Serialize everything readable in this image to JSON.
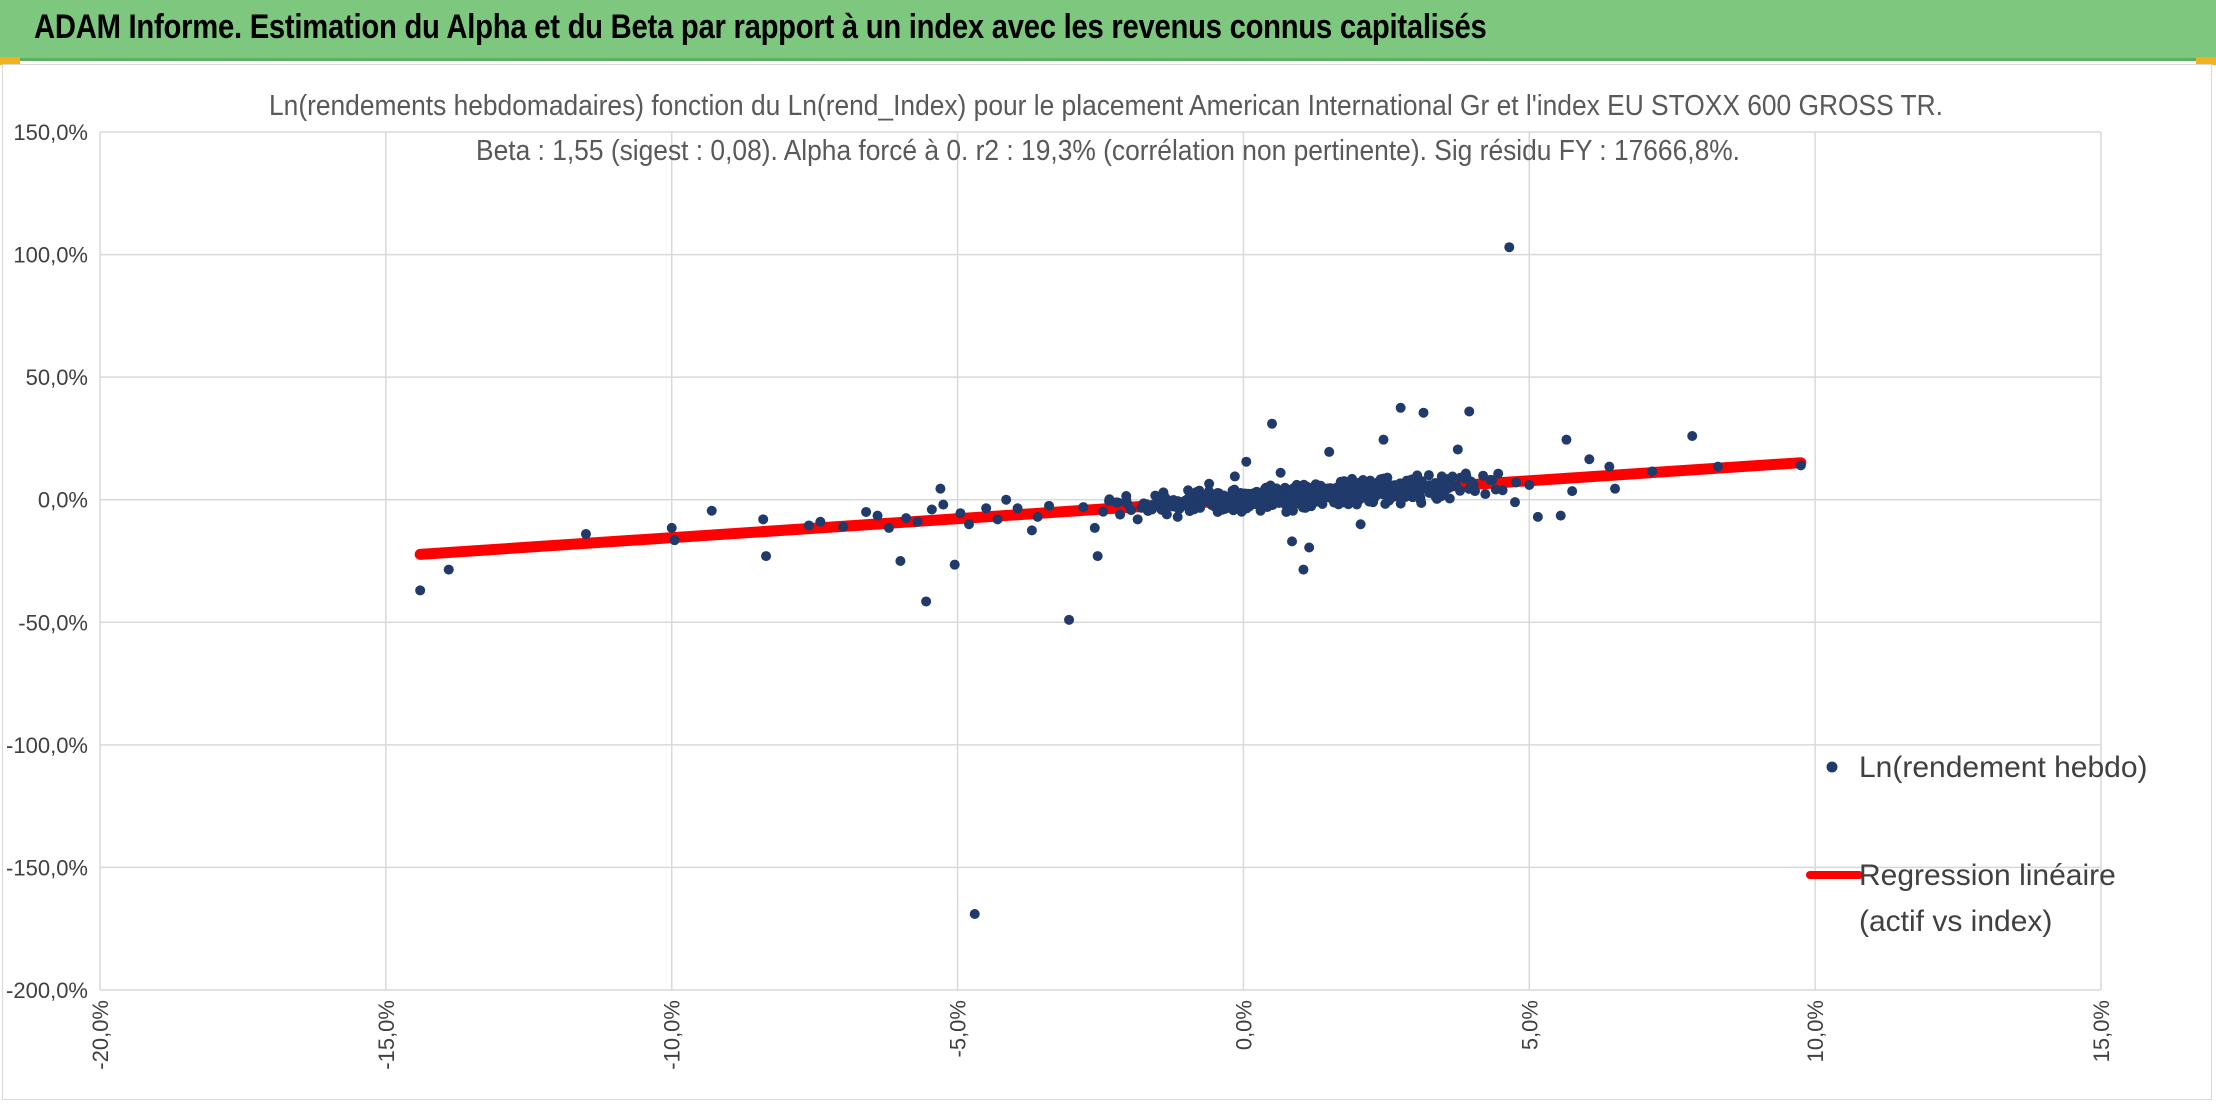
{
  "header": {
    "title": "ADAM Informe. Estimation du Alpha et du Beta par rapport à un index avec les revenus connus capitalisés"
  },
  "colors": {
    "header_bg": "#7dc77f",
    "accent_corner": "#f2b31a",
    "points": "#1f3a6b",
    "regression": "#ff0000",
    "grid": "#d9d9d9",
    "text": "#595959"
  },
  "chart_data": {
    "type": "scatter",
    "title": "Ln(rendements hebdomadaires) fonction du Ln(rend_Index) pour le placement American International Gr et l'index EU STOXX 600 GROSS TR.",
    "subtitle": "Beta : 1,55 (sigest : 0,08). Alpha forcé à 0. r2 : 19,3% (corrélation non pertinente). Sig résidu FY : 17666,8%.",
    "xlabel": "",
    "ylabel": "",
    "xlim": [
      -20,
      15
    ],
    "ylim": [
      -200,
      150
    ],
    "x_ticks": [
      "-20,0%",
      "-15,0%",
      "-10,0%",
      "-5,0%",
      "0,0%",
      "5,0%",
      "10,0%",
      "15,0%"
    ],
    "y_ticks": [
      "150,0%",
      "100,0%",
      "50,0%",
      "0,0%",
      "-50,0%",
      "-100,0%",
      "-150,0%",
      "-200,0%"
    ],
    "grid": true,
    "legend_position": "right",
    "series": [
      {
        "name": "Ln(rendement hebdo)",
        "kind": "scatter",
        "points": [
          [
            -14.4,
            -37
          ],
          [
            -13.9,
            -28.5
          ],
          [
            -11.5,
            -14
          ],
          [
            -10.0,
            -11.5
          ],
          [
            -9.95,
            -16.5
          ],
          [
            -9.3,
            -4.5
          ],
          [
            -8.4,
            -8
          ],
          [
            -8.35,
            -23
          ],
          [
            -7.6,
            -10.5
          ],
          [
            -7.4,
            -9
          ],
          [
            -7.0,
            -11
          ],
          [
            -6.6,
            -5
          ],
          [
            -6.4,
            -6.5
          ],
          [
            -6.2,
            -11.5
          ],
          [
            -6.0,
            -25
          ],
          [
            -5.9,
            -7.5
          ],
          [
            -5.7,
            -9
          ],
          [
            -5.55,
            -41.5
          ],
          [
            -5.45,
            -4
          ],
          [
            -5.3,
            4.5
          ],
          [
            -5.25,
            -2
          ],
          [
            -5.05,
            -26.5
          ],
          [
            -4.95,
            -5.5
          ],
          [
            -4.8,
            -10
          ],
          [
            -4.7,
            -169
          ],
          [
            -4.5,
            -3.5
          ],
          [
            -4.3,
            -8
          ],
          [
            -4.15,
            0
          ],
          [
            -3.95,
            -3.5
          ],
          [
            -3.7,
            -12.5
          ],
          [
            -3.6,
            -7
          ],
          [
            -3.4,
            -2.5
          ],
          [
            -3.05,
            -49
          ],
          [
            -2.8,
            -3
          ],
          [
            -2.6,
            -11.5
          ],
          [
            -2.55,
            -23
          ],
          [
            -2.35,
            -0.5
          ],
          [
            -2.05,
            1.5
          ],
          [
            -1.85,
            -8
          ],
          [
            -1.6,
            -4
          ],
          [
            -1.4,
            3
          ],
          [
            -1.15,
            -7
          ],
          [
            -0.9,
            0.5
          ],
          [
            -0.6,
            6.5
          ],
          [
            -0.45,
            -5
          ],
          [
            -0.15,
            9.5
          ],
          [
            0.05,
            15.5
          ],
          [
            0.3,
            -4.5
          ],
          [
            0.5,
            31
          ],
          [
            0.65,
            11
          ],
          [
            0.75,
            -5
          ],
          [
            0.85,
            -17
          ],
          [
            1.05,
            -28.5
          ],
          [
            1.15,
            -19.5
          ],
          [
            1.3,
            5
          ],
          [
            1.5,
            19.5
          ],
          [
            1.7,
            3
          ],
          [
            1.9,
            8.5
          ],
          [
            2.05,
            -10
          ],
          [
            2.25,
            1.5
          ],
          [
            2.45,
            24.5
          ],
          [
            2.75,
            37.5
          ],
          [
            2.95,
            8
          ],
          [
            3.15,
            35.5
          ],
          [
            3.35,
            2
          ],
          [
            3.75,
            20.5
          ],
          [
            3.95,
            36
          ],
          [
            4.05,
            3.5
          ],
          [
            4.35,
            8
          ],
          [
            4.65,
            103
          ],
          [
            4.75,
            -1
          ],
          [
            5.0,
            6
          ],
          [
            5.15,
            -7
          ],
          [
            5.55,
            -6.5
          ],
          [
            5.65,
            24.5
          ],
          [
            5.75,
            3.5
          ],
          [
            6.05,
            16.5
          ],
          [
            6.4,
            13.5
          ],
          [
            6.5,
            4.5
          ],
          [
            7.15,
            11.5
          ],
          [
            7.85,
            26
          ],
          [
            8.3,
            13.5
          ],
          [
            9.75,
            14
          ]
        ]
      },
      {
        "name": "Regression linéaire (actif vs index)",
        "legend_lines": [
          "Regression linéaire",
          "(actif vs index)"
        ],
        "kind": "line",
        "points": [
          [
            -14.4,
            -22.3
          ],
          [
            9.75,
            15.1
          ]
        ]
      }
    ]
  }
}
